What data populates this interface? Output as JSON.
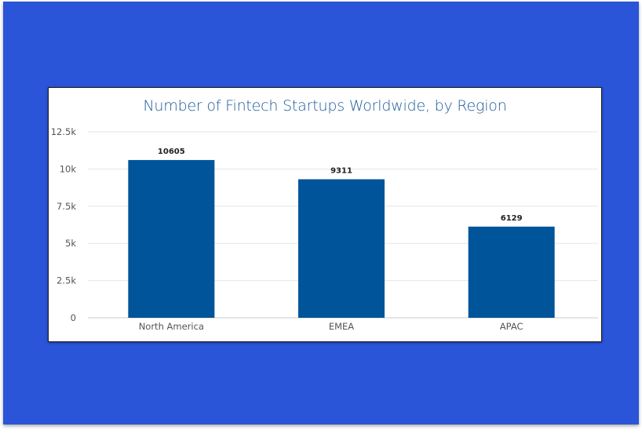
{
  "chart_data": {
    "type": "bar",
    "title": "Number of Fintech Startups Worldwide, by Region",
    "categories": [
      "North America",
      "EMEA",
      "APAC"
    ],
    "values": [
      10605,
      9311,
      6129
    ],
    "data_labels": [
      "10605",
      "9311",
      "6129"
    ],
    "y_ticks": [
      0,
      2500,
      5000,
      7500,
      10000,
      12500
    ],
    "y_tick_labels": [
      "0",
      "2.5k",
      "5k",
      "7.5k",
      "10k",
      "12.5k"
    ],
    "ylim": [
      0,
      12500
    ],
    "xlabel": "",
    "ylabel": "",
    "grid": true,
    "legend": "none",
    "colors": {
      "bar": "#00549a",
      "title": "#1e5a99",
      "background": "#2b55d9",
      "gridline": "#e6e6e6"
    }
  }
}
